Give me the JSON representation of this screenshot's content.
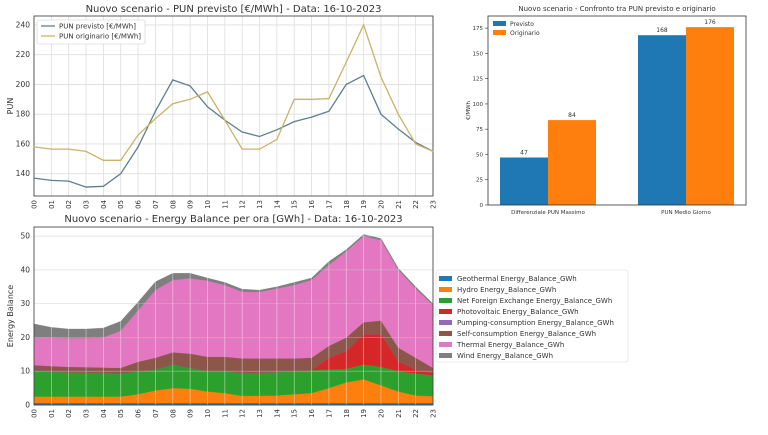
{
  "chart_data": [
    {
      "type": "line",
      "title": "Nuovo scenario - PUN previsto [€/MWh] - Data: 16-10-2023",
      "xlabel": "",
      "ylabel": "PUN",
      "categories": [
        "00",
        "01",
        "02",
        "03",
        "04",
        "05",
        "06",
        "07",
        "08",
        "09",
        "10",
        "11",
        "12",
        "13",
        "14",
        "15",
        "16",
        "17",
        "18",
        "19",
        "20",
        "21",
        "22",
        "23"
      ],
      "ylim": [
        125,
        246
      ],
      "yticks": [
        140,
        160,
        180,
        200,
        220,
        240
      ],
      "grid": true,
      "legend_position": "top-left",
      "series": [
        {
          "name": "PUN previsto [€/MWh]",
          "color": "#5f7f8f",
          "values": [
            137,
            135.5,
            135,
            131,
            131.5,
            140,
            158,
            182,
            203,
            199,
            185,
            176,
            168,
            165,
            169.5,
            175,
            178,
            182,
            200,
            206,
            180,
            170,
            161,
            155
          ]
        },
        {
          "name": "PUN originario [€/MWh]",
          "color": "#c9b36a",
          "values": [
            158,
            156.5,
            156.5,
            155,
            149,
            149,
            166,
            177,
            187,
            190,
            195,
            176,
            156.5,
            156.5,
            163,
            190,
            190,
            190.5,
            215,
            240,
            205,
            180,
            160,
            155
          ]
        }
      ]
    },
    {
      "type": "bar",
      "title": "Nuovo scenario - Confronto tra PUN previsto e originario",
      "xlabel": "",
      "ylabel": "€/MWh",
      "categories": [
        "Differenziale PUN Massimo",
        "PUN Medio Giorno"
      ],
      "ylim": [
        0,
        187
      ],
      "yticks": [
        0,
        25,
        50,
        75,
        100,
        125,
        150,
        175
      ],
      "grid": false,
      "legend_position": "top-left",
      "series": [
        {
          "name": "Previsto",
          "color": "#1f77b4",
          "values": [
            47,
            168
          ],
          "labels": [
            "47",
            "168"
          ]
        },
        {
          "name": "Originario",
          "color": "#ff7f0e",
          "values": [
            84,
            176
          ],
          "labels": [
            "84",
            "176"
          ]
        }
      ]
    },
    {
      "type": "area",
      "stacked": true,
      "title": "Nuovo scenario - Energy Balance per ora [GWh] - Data: 16-10-2023",
      "xlabel": "",
      "ylabel": "Energy Balance",
      "categories": [
        "00",
        "01",
        "02",
        "03",
        "04",
        "05",
        "06",
        "07",
        "08",
        "09",
        "10",
        "11",
        "12",
        "13",
        "14",
        "15",
        "16",
        "17",
        "18",
        "19",
        "20",
        "21",
        "22",
        "23"
      ],
      "ylim": [
        0,
        52.7
      ],
      "yticks": [
        0,
        10,
        20,
        30,
        40,
        50
      ],
      "grid": true,
      "legend_position": "right",
      "series": [
        {
          "name": "Geothermal Energy_Balance_GWh",
          "color": "#1f77b4",
          "values": [
            0.6,
            0.6,
            0.6,
            0.6,
            0.6,
            0.6,
            0.6,
            0.6,
            0.6,
            0.6,
            0.6,
            0.6,
            0.6,
            0.6,
            0.6,
            0.6,
            0.6,
            0.6,
            0.6,
            0.6,
            0.6,
            0.6,
            0.6,
            0.6
          ]
        },
        {
          "name": "Hydro Energy_Balance_GWh",
          "color": "#ff7f0e",
          "values": [
            1.9,
            1.9,
            1.9,
            1.9,
            1.9,
            1.9,
            2.6,
            3.7,
            4.4,
            4.2,
            3.4,
            2.9,
            2.1,
            2.1,
            2.2,
            2.6,
            2.9,
            4.4,
            6.1,
            7.0,
            5.2,
            3.4,
            2.2,
            2.0
          ]
        },
        {
          "name": "Net Foreign Exchange Energy_Balance_GWh",
          "color": "#2ca02c",
          "values": [
            7.5,
            7.3,
            7.2,
            7.1,
            7.0,
            6.8,
            6.8,
            6.2,
            7.0,
            6.2,
            6.0,
            6.5,
            6.8,
            6.8,
            7.0,
            6.8,
            6.8,
            5.5,
            4.0,
            4.4,
            5.5,
            6.0,
            6.5,
            6.2
          ]
        },
        {
          "name": "Photovoltaic Energy_Balance_GWh",
          "color": "#d62728",
          "values": [
            0,
            0,
            0,
            0,
            0,
            0,
            0,
            0,
            0,
            0,
            0,
            0,
            0,
            0,
            0,
            0,
            0,
            3.5,
            5.3,
            9.0,
            9.7,
            3.0,
            1.2,
            0.7
          ]
        },
        {
          "name": "Pumping-consumption Energy_Balance_GWh",
          "color": "#9467bd",
          "values": [
            0,
            0,
            0,
            0,
            0,
            0,
            0,
            0,
            0,
            0,
            0,
            0,
            0,
            0,
            0,
            0,
            0,
            0,
            0,
            0,
            0,
            0,
            0,
            0
          ]
        },
        {
          "name": "Self-consumption Energy_Balance_GWh",
          "color": "#8c564b",
          "values": [
            1.8,
            1.7,
            1.6,
            1.6,
            1.6,
            1.7,
            2.8,
            3.5,
            3.6,
            4.2,
            4.3,
            4.3,
            4.3,
            4.3,
            4.0,
            3.8,
            3.7,
            3.5,
            4.0,
            3.5,
            4.0,
            4.0,
            3.5,
            1.5
          ]
        },
        {
          "name": "Thermal Energy_Balance_GWh",
          "color": "#e377c2",
          "values": [
            8.2,
            8.5,
            8.5,
            8.6,
            8.9,
            11.0,
            15.2,
            20.0,
            21.4,
            22.3,
            22.5,
            21.2,
            19.7,
            19.7,
            20.7,
            21.7,
            23.0,
            24.0,
            25.5,
            25.5,
            23.8,
            23.0,
            20.5,
            18.5
          ]
        },
        {
          "name": "Wind Energy_Balance_GWh",
          "color": "#7f7f7f",
          "values": [
            4.0,
            3.0,
            2.7,
            2.7,
            2.8,
            2.8,
            2.5,
            2.5,
            2.0,
            1.5,
            0.8,
            0.8,
            0.8,
            0.5,
            0.5,
            0.8,
            0.6,
            1.0,
            0.5,
            0.5,
            0.5,
            0.5,
            0.5,
            0.5
          ]
        }
      ]
    }
  ]
}
